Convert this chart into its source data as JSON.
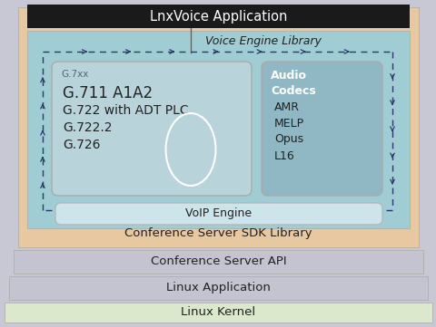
{
  "fig_width": 4.81,
  "fig_height": 3.61,
  "dpi": 100,
  "bg_outer": "#c8c8d4",
  "bg_linux_kernel": "#dce8cc",
  "bg_linux_app": "#c4c4d0",
  "bg_conf_api": "#c4c4d0",
  "bg_conf_sdk": "#e8c8a0",
  "bg_voice_engine": "#a0ccd4",
  "bg_lnxvoice_bar": "#1a1a1a",
  "bg_g7xx_box": "#b8d4da",
  "bg_audio_box": "#90b8c4",
  "bg_voip_box": "#cce4ea",
  "title_text": "LnxVoice Application",
  "title_color": "#ffffff",
  "voice_engine_label": "Voice Engine Library",
  "g7xx_label": "G.7xx",
  "g7xx_codecs": [
    "G.711 A1A2",
    "G.722 with ADT PLC",
    "G.722.2",
    "G.726"
  ],
  "audio_label": "Audio\nCodecs",
  "audio_codecs": [
    "AMR",
    "MELP",
    "Opus",
    "L16"
  ],
  "voip_label": "VoIP Engine",
  "conf_sdk_label": "Conference Server SDK Library",
  "conf_api_label": "Conference Server API",
  "linux_app_label": "Linux Application",
  "linux_kernel_label": "Linux Kernel",
  "arrow_color": "#2a3a6a",
  "text_dark": "#222222",
  "text_mid": "#444444"
}
